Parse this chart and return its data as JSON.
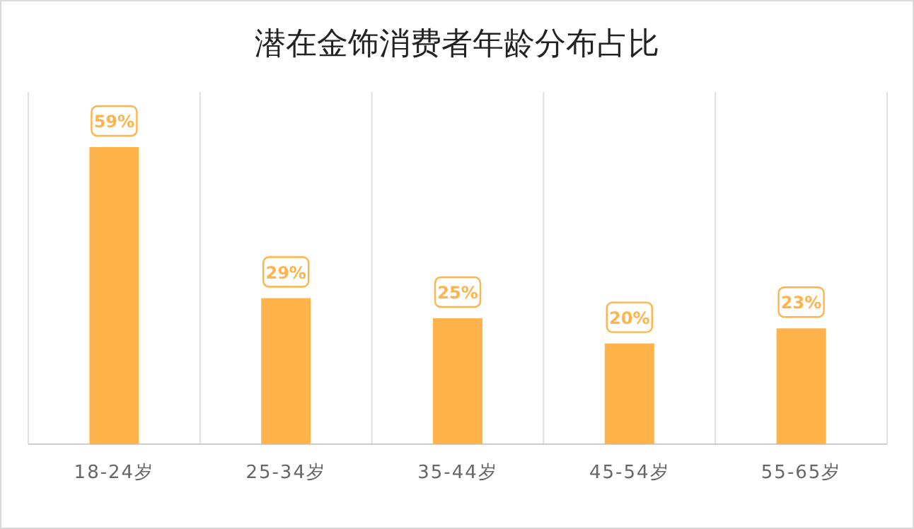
{
  "chart_data": {
    "type": "bar",
    "title": "潜在金饰消费者年龄分布占比",
    "categories": [
      "18-24岁",
      "25-34岁",
      "35-44岁",
      "45-54岁",
      "55-65岁"
    ],
    "values": [
      59,
      29,
      25,
      20,
      23
    ],
    "value_labels": [
      "59%",
      "29%",
      "25%",
      "20%",
      "23%"
    ],
    "color": "#ffb34a",
    "grid": "x"
  }
}
